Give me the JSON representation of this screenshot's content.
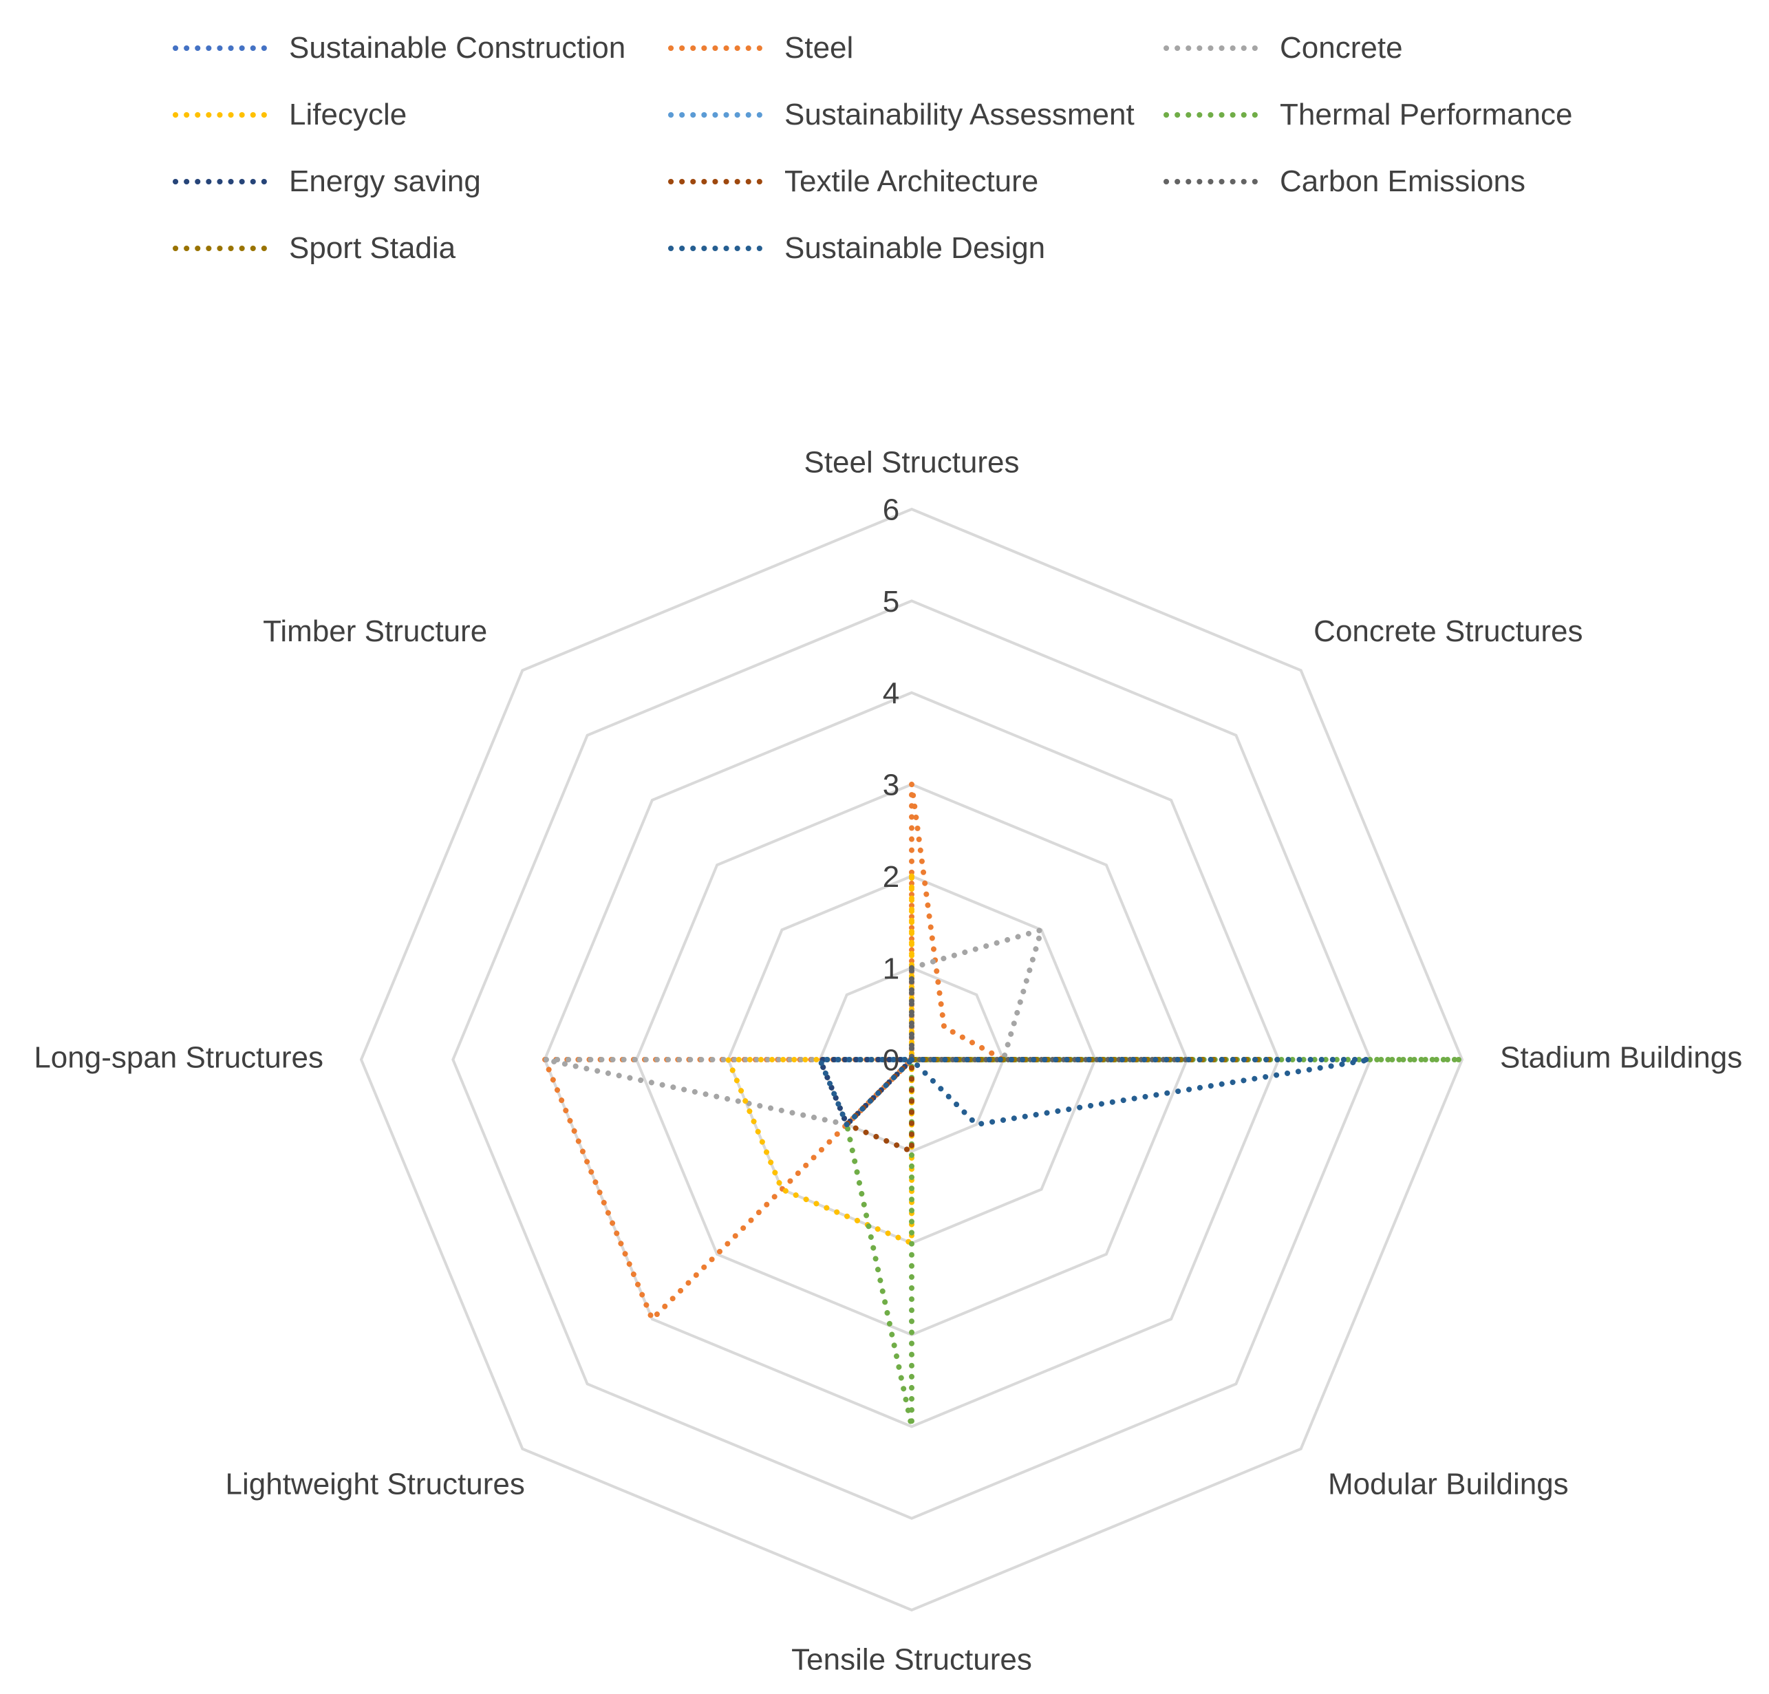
{
  "chart_data": {
    "type": "radar",
    "title": "",
    "categories": [
      "Steel Structures",
      "Concrete Structures",
      "Stadium Buildings",
      "Modular Buildings",
      "Tensile Structures",
      "Lightweight Structures",
      "Long-span Structures",
      "Timber Structure"
    ],
    "rlim": [
      0,
      6
    ],
    "ticks": [
      0,
      1,
      2,
      3,
      4,
      5,
      6
    ],
    "grid": true,
    "legend_position": "top",
    "series": [
      {
        "name": "Sustainable Construction",
        "color": "#4472C4",
        "values": [
          0,
          0,
          0,
          0,
          0,
          0,
          0,
          0
        ]
      },
      {
        "name": "Steel",
        "color": "#ED7D31",
        "values": [
          3,
          0.5,
          1,
          0,
          0,
          4,
          4,
          0
        ]
      },
      {
        "name": "Concrete",
        "color": "#A5A5A5",
        "values": [
          1,
          2,
          1,
          0,
          0,
          1,
          4,
          0
        ]
      },
      {
        "name": "Lifecycle",
        "color": "#FFC000",
        "values": [
          2,
          0,
          1,
          0,
          2,
          2,
          2,
          0
        ]
      },
      {
        "name": "Sustainability Assessment",
        "color": "#5B9BD5",
        "values": [
          0,
          0,
          2,
          0,
          0,
          0,
          1,
          0
        ]
      },
      {
        "name": "Thermal Performance",
        "color": "#70AD47",
        "values": [
          0,
          0,
          6,
          0,
          4,
          1,
          1,
          0
        ]
      },
      {
        "name": "Energy saving",
        "color": "#264478",
        "values": [
          0,
          0,
          2,
          0,
          0,
          1,
          1,
          0
        ]
      },
      {
        "name": "Textile Architecture",
        "color": "#9E480E",
        "values": [
          0,
          0,
          4,
          0,
          1,
          1,
          0,
          0
        ]
      },
      {
        "name": "Carbon Emissions",
        "color": "#636363",
        "values": [
          1,
          0,
          3,
          0,
          0,
          0,
          0,
          0
        ]
      },
      {
        "name": "Sport Stadia",
        "color": "#997300",
        "values": [
          0,
          0,
          4,
          0,
          0,
          0,
          0,
          0
        ]
      },
      {
        "name": "Sustainable Design",
        "color": "#255E91",
        "values": [
          0,
          0,
          5,
          1,
          0,
          1,
          1,
          0
        ]
      }
    ]
  }
}
